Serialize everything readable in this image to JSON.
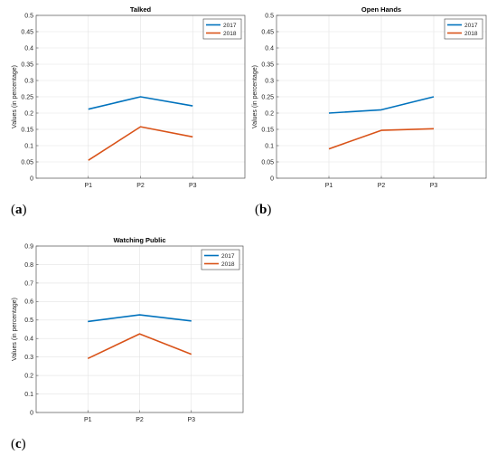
{
  "colors": {
    "s2017": "#0072BD",
    "s2018": "#D95319",
    "grid": "#e3e3e3",
    "axis": "#555555"
  },
  "chart_data": [
    {
      "type": "line",
      "panel": "(a)",
      "title": "Talked",
      "ylabel": "Values (in percentage)",
      "xlabel": "",
      "categories": [
        "P1",
        "P2",
        "P3"
      ],
      "xlim": [
        0,
        4
      ],
      "ylim": [
        0,
        0.5
      ],
      "yticks": [
        "0",
        "0.05",
        "0.1",
        "0.15",
        "0.2",
        "0.25",
        "0.3",
        "0.35",
        "0.4",
        "0.45",
        "0.5"
      ],
      "grid": true,
      "legend": "top-right",
      "series": [
        {
          "name": "2017",
          "values": [
            0.212,
            0.25,
            0.222
          ]
        },
        {
          "name": "2018",
          "values": [
            0.055,
            0.158,
            0.127
          ]
        }
      ]
    },
    {
      "type": "line",
      "panel": "(b)",
      "title": "Open Hands",
      "ylabel": "Values (in percentage)",
      "xlabel": "",
      "categories": [
        "P1",
        "P2",
        "P3"
      ],
      "xlim": [
        0,
        4
      ],
      "ylim": [
        0,
        0.5
      ],
      "yticks": [
        "0",
        "0.05",
        "0.1",
        "0.15",
        "0.2",
        "0.25",
        "0.3",
        "0.35",
        "0.4",
        "0.45",
        "0.5"
      ],
      "grid": true,
      "legend": "top-right",
      "series": [
        {
          "name": "2017",
          "values": [
            0.2,
            0.21,
            0.25
          ]
        },
        {
          "name": "2018",
          "values": [
            0.09,
            0.147,
            0.152
          ]
        }
      ]
    },
    {
      "type": "line",
      "panel": "(c)",
      "title": "Watching Public",
      "ylabel": "Values (in percentage)",
      "xlabel": "",
      "categories": [
        "P1",
        "P2",
        "P3"
      ],
      "xlim": [
        0,
        4
      ],
      "ylim": [
        0,
        0.9
      ],
      "yticks": [
        "0",
        "0.1",
        "0.2",
        "0.3",
        "0.4",
        "0.5",
        "0.6",
        "0.7",
        "0.8",
        "0.9"
      ],
      "grid": true,
      "legend": "top-right",
      "series": [
        {
          "name": "2017",
          "values": [
            0.492,
            0.528,
            0.495
          ]
        },
        {
          "name": "2018",
          "values": [
            0.292,
            0.425,
            0.315
          ]
        }
      ]
    }
  ]
}
